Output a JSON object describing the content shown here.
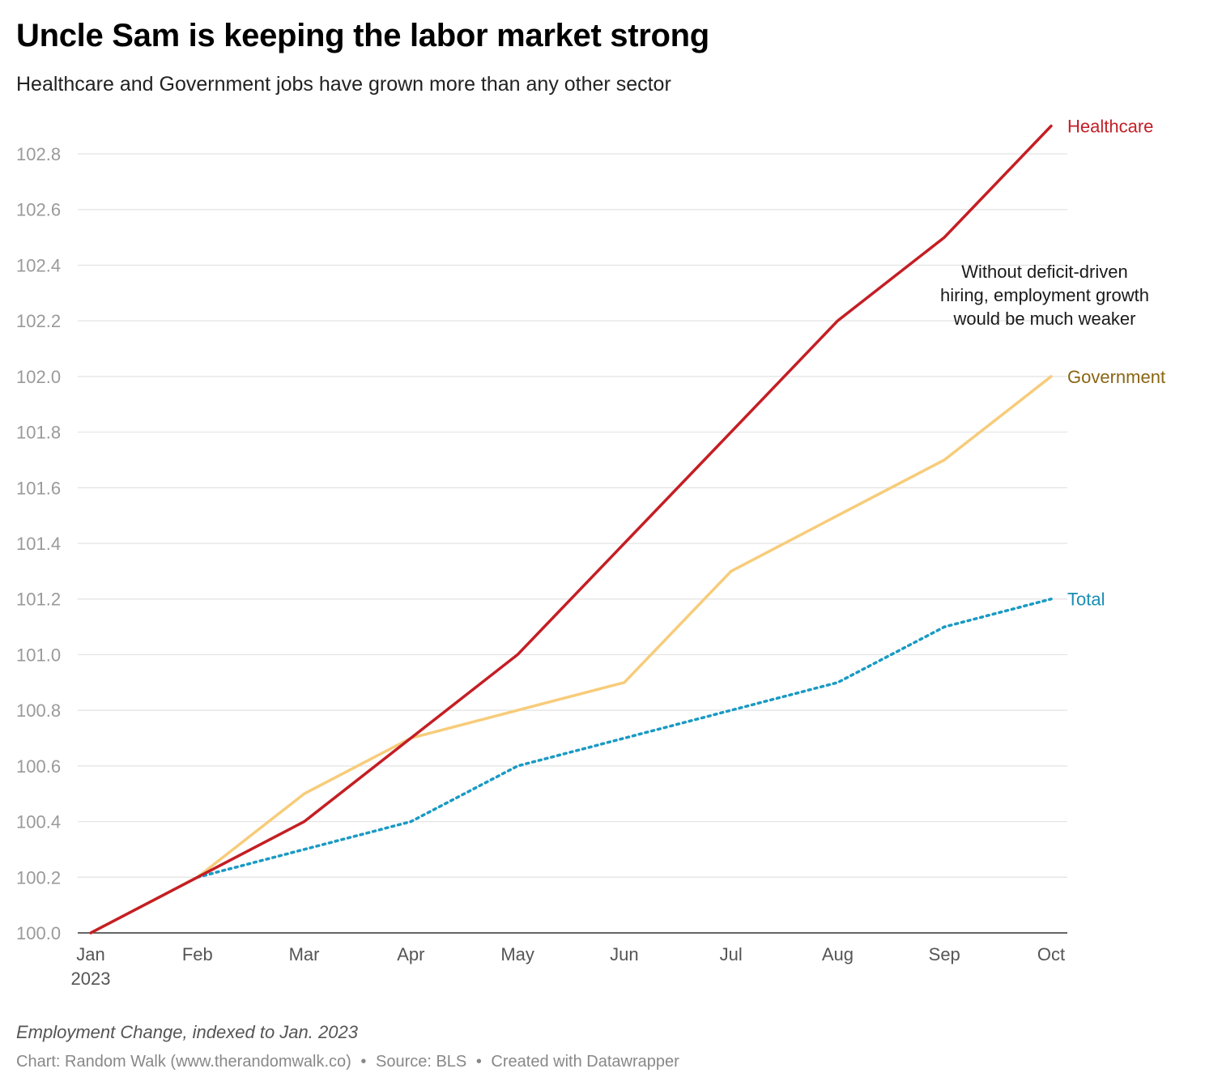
{
  "header": {
    "title": "Uncle Sam is keeping the labor market strong",
    "subtitle": "Healthcare and Government jobs have grown more than any other sector"
  },
  "chart_data": {
    "type": "line",
    "x": [
      "Jan",
      "Feb",
      "Mar",
      "Apr",
      "May",
      "Jun",
      "Jul",
      "Aug",
      "Sep",
      "Oct"
    ],
    "x_first_sublabel": "2023",
    "ylim": [
      100.0,
      102.9
    ],
    "yticks": [
      "100.0",
      "100.2",
      "100.4",
      "100.6",
      "100.8",
      "101.0",
      "101.2",
      "101.4",
      "101.6",
      "101.8",
      "102.0",
      "102.2",
      "102.4",
      "102.6",
      "102.8"
    ],
    "grid": true,
    "legend": "direct labels at line ends",
    "series": [
      {
        "name": "Government",
        "color": "#f7cc7a",
        "label_color": "#8a6514",
        "dashed": false,
        "values": [
          100.0,
          100.2,
          100.5,
          100.7,
          100.8,
          100.9,
          101.3,
          101.5,
          101.7,
          102.0
        ]
      },
      {
        "name": "Total",
        "color": "#1a9ac4",
        "label_color": "#1a8db5",
        "dashed": true,
        "values": [
          null,
          100.2,
          100.3,
          100.4,
          100.6,
          100.7,
          100.8,
          100.9,
          101.1,
          101.2
        ]
      },
      {
        "name": "Healthcare",
        "color": "#c41e24",
        "label_color": "#c41e24",
        "dashed": false,
        "values": [
          100.0,
          100.2,
          100.4,
          100.7,
          101.0,
          101.4,
          101.8,
          102.2,
          102.5,
          102.9
        ]
      }
    ],
    "annotation": {
      "lines": [
        "Without deficit-driven",
        "hiring, employment growth",
        "would be much weaker"
      ]
    }
  },
  "notes": "Employment Change, indexed to Jan. 2023",
  "footer": {
    "chart": "Chart: Random Walk (www.therandomwalk.co)",
    "source": "Source: BLS",
    "created": "Created with Datawrapper",
    "separator": "•"
  }
}
